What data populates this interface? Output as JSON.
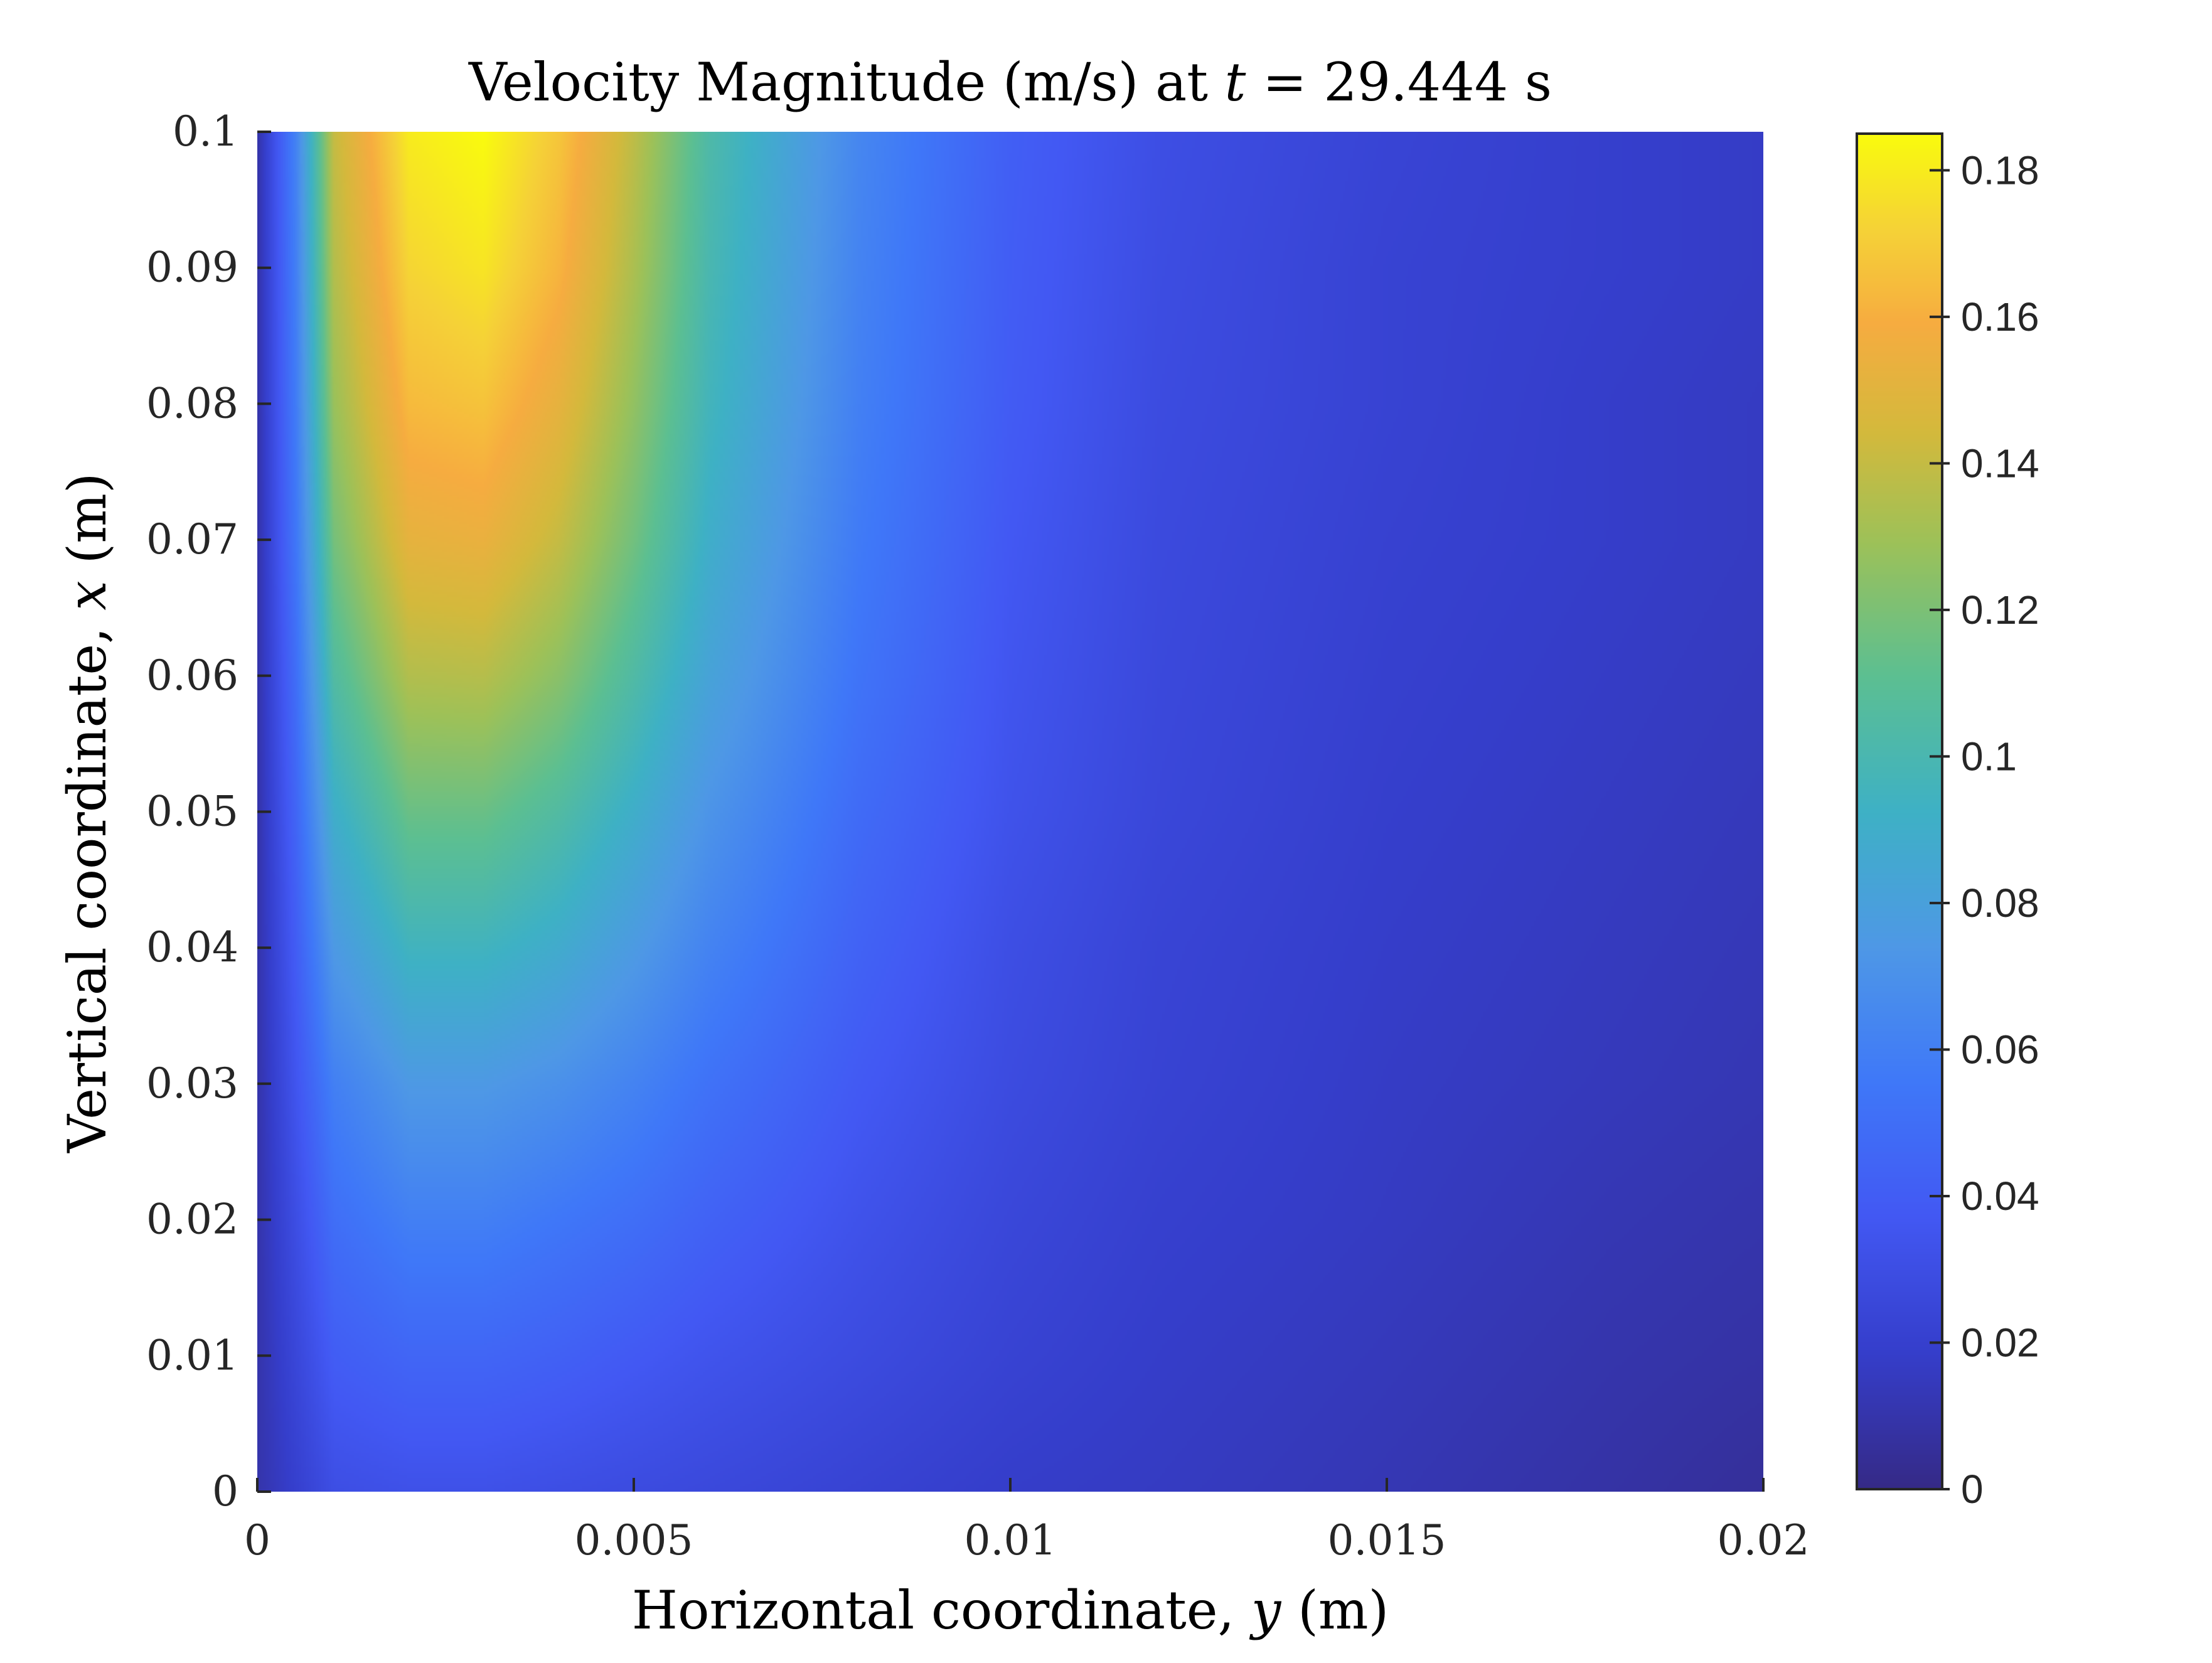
{
  "chart_data": {
    "type": "heatmap",
    "title_main": "Velocity Magnitude (m/s) at ",
    "title_var": "t",
    "title_rest": " = 29.444 s",
    "xlabel_main": "Horizontal coordinate, ",
    "xlabel_var": "y",
    "xlabel_unit": " (m)",
    "ylabel_main": "Vertical coordinate, ",
    "ylabel_var": "x",
    "ylabel_unit": " (m)",
    "xlim": [
      0,
      0.02
    ],
    "ylim": [
      0,
      0.1
    ],
    "x_ticks": [
      0,
      0.005,
      0.01,
      0.015,
      0.02
    ],
    "x_tick_labels": [
      "0",
      "0.005",
      "0.01",
      "0.015",
      "0.02"
    ],
    "y_ticks": [
      0,
      0.01,
      0.02,
      0.03,
      0.04,
      0.05,
      0.06,
      0.07,
      0.08,
      0.09,
      0.1
    ],
    "y_tick_labels": [
      "0",
      "0.01",
      "0.02",
      "0.03",
      "0.04",
      "0.05",
      "0.06",
      "0.07",
      "0.08",
      "0.09",
      "0.1"
    ],
    "colorbar": {
      "colormap": "parula",
      "clim": [
        0,
        0.185
      ],
      "ticks": [
        0,
        0.02,
        0.04,
        0.06,
        0.08,
        0.1,
        0.12,
        0.14,
        0.16,
        0.18
      ],
      "tick_labels": [
        "0",
        "0.02",
        "0.04",
        "0.06",
        "0.08",
        "0.1",
        "0.12",
        "0.14",
        "0.16",
        "0.18"
      ]
    },
    "grid": false,
    "field_samples": {
      "y": [
        0,
        0.0005,
        0.001,
        0.002,
        0.003,
        0.004,
        0.005,
        0.006,
        0.008,
        0.01,
        0.012,
        0.015,
        0.018,
        0.02
      ],
      "x": [
        0,
        0.01,
        0.02,
        0.03,
        0.04,
        0.05,
        0.06,
        0.07,
        0.08,
        0.09,
        0.1
      ],
      "values": [
        [
          0.01,
          0.02,
          0.03,
          0.032,
          0.032,
          0.03,
          0.028,
          0.026,
          0.022,
          0.018,
          0.016,
          0.012,
          0.008,
          0.005
        ],
        [
          0.01,
          0.025,
          0.04,
          0.045,
          0.045,
          0.042,
          0.038,
          0.034,
          0.028,
          0.022,
          0.018,
          0.014,
          0.01,
          0.008
        ],
        [
          0.01,
          0.03,
          0.05,
          0.06,
          0.06,
          0.055,
          0.05,
          0.043,
          0.033,
          0.025,
          0.02,
          0.016,
          0.012,
          0.01
        ],
        [
          0.01,
          0.035,
          0.06,
          0.075,
          0.075,
          0.07,
          0.062,
          0.052,
          0.038,
          0.028,
          0.022,
          0.017,
          0.014,
          0.012
        ],
        [
          0.01,
          0.04,
          0.075,
          0.095,
          0.095,
          0.088,
          0.076,
          0.062,
          0.043,
          0.03,
          0.023,
          0.018,
          0.015,
          0.013
        ],
        [
          0.01,
          0.045,
          0.09,
          0.115,
          0.115,
          0.105,
          0.09,
          0.072,
          0.048,
          0.033,
          0.025,
          0.019,
          0.016,
          0.014
        ],
        [
          0.01,
          0.05,
          0.105,
          0.135,
          0.136,
          0.124,
          0.104,
          0.082,
          0.053,
          0.035,
          0.026,
          0.02,
          0.017,
          0.015
        ],
        [
          0.01,
          0.055,
          0.118,
          0.152,
          0.154,
          0.14,
          0.117,
          0.09,
          0.057,
          0.037,
          0.027,
          0.021,
          0.018,
          0.016
        ],
        [
          0.01,
          0.058,
          0.128,
          0.164,
          0.167,
          0.152,
          0.126,
          0.096,
          0.06,
          0.039,
          0.028,
          0.022,
          0.018,
          0.016
        ],
        [
          0.01,
          0.06,
          0.135,
          0.173,
          0.178,
          0.162,
          0.133,
          0.1,
          0.062,
          0.04,
          0.029,
          0.022,
          0.019,
          0.017
        ],
        [
          0.01,
          0.062,
          0.14,
          0.18,
          0.185,
          0.168,
          0.138,
          0.103,
          0.064,
          0.041,
          0.03,
          0.023,
          0.019,
          0.017
        ]
      ]
    }
  }
}
